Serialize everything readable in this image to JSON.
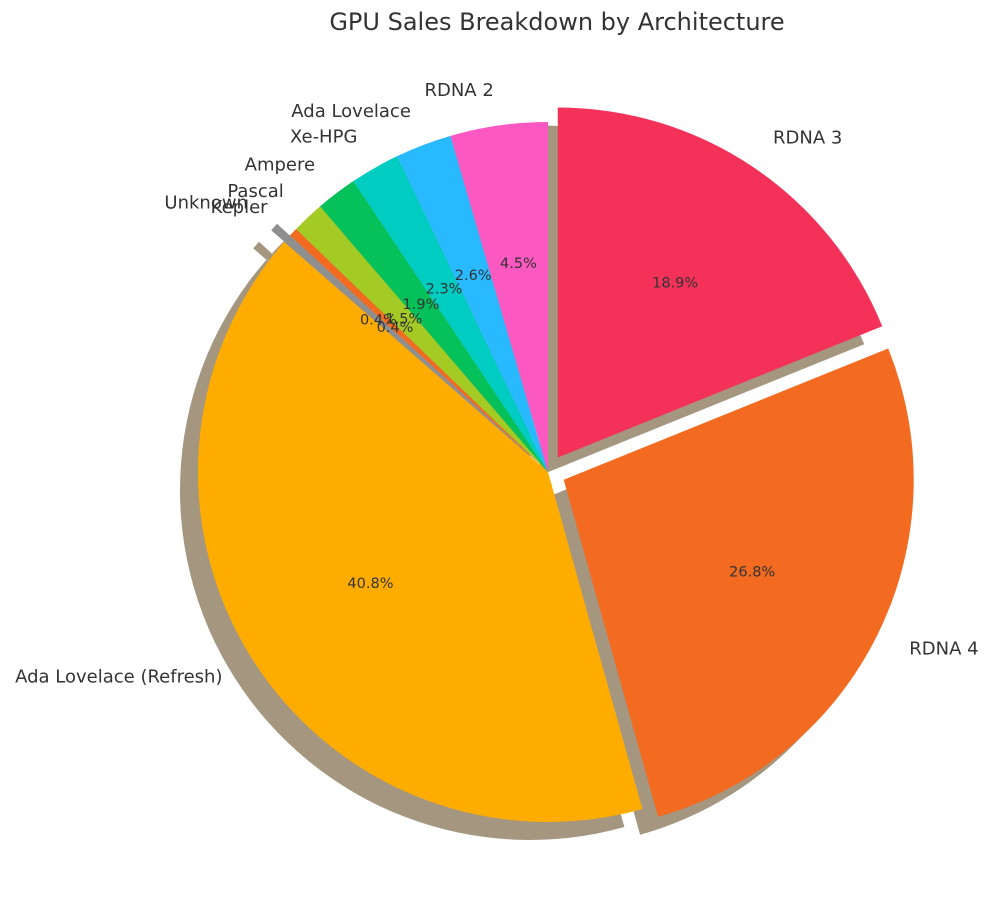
{
  "chart_data": {
    "type": "pie",
    "title": "GPU Sales Breakdown by Architecture",
    "slices": [
      {
        "label": "RDNA 3",
        "value": 18.9,
        "pct_label": "18.9%",
        "color": "#F43159",
        "exploded": true
      },
      {
        "label": "RDNA 4",
        "value": 26.8,
        "pct_label": "26.8%",
        "color": "#F26B21",
        "exploded": true
      },
      {
        "label": "Ada Lovelace (Refresh)",
        "value": 40.8,
        "pct_label": "40.8%",
        "color": "#FEAD00",
        "exploded": false
      },
      {
        "label": "Unknown",
        "value": 0.4,
        "pct_label": "0.4%",
        "color": "#8F8F8F",
        "exploded": true
      },
      {
        "label": "Kepler",
        "value": 0.4,
        "pct_label": "0.4%",
        "color": "#F26B21",
        "exploded": false
      },
      {
        "label": "Pascal",
        "value": 1.5,
        "pct_label": "1.5%",
        "color": "#A3CB24",
        "exploded": false
      },
      {
        "label": "Ampere",
        "value": 1.9,
        "pct_label": "1.9%",
        "color": "#06C159",
        "exploded": false
      },
      {
        "label": "Xe-HPG",
        "value": 2.3,
        "pct_label": "2.3%",
        "color": "#00CCC2",
        "exploded": false
      },
      {
        "label": "Ada Lovelace",
        "value": 2.6,
        "pct_label": "2.6%",
        "color": "#29B9FF",
        "exploded": false
      },
      {
        "label": "RDNA 2",
        "value": 4.5,
        "pct_label": "4.5%",
        "color": "#FB58C1",
        "exploded": false
      }
    ],
    "start_angle_deg": 90,
    "direction": "clockwise",
    "shadow": true,
    "legend": "none"
  }
}
